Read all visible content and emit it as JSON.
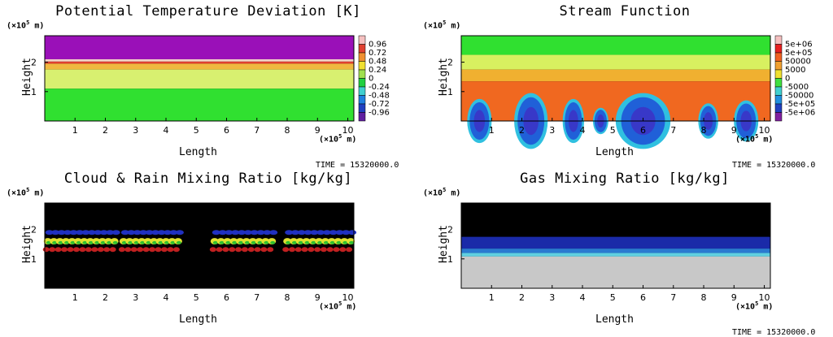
{
  "chart_data": [
    {
      "type": "heatmap",
      "title": "Potential Temperature Deviation [K]",
      "xlabel": "Length",
      "ylabel": "Height",
      "x_unit": "(×10⁵ m)",
      "y_unit": "(×10⁵ m)",
      "xlim": [
        0,
        10.2
      ],
      "ylim": [
        0,
        2.9
      ],
      "x_ticks": [
        "1",
        "2",
        "3",
        "4",
        "5",
        "6",
        "7",
        "8",
        "9",
        "10"
      ],
      "y_ticks": [
        "1",
        "2"
      ],
      "colorbar": [
        "0.96",
        "0.72",
        "0.48",
        "0.24",
        "0",
        "-0.24",
        "-0.48",
        "-0.72",
        "-0.96"
      ],
      "colorbar_colors": [
        "#f5c0c0",
        "#e04030",
        "#f09030",
        "#f0e030",
        "#a0e050",
        "#20d040",
        "#40d0d0",
        "#2080e0",
        "#2040c0",
        "#6020a0"
      ],
      "time": "TIME = 15320000.0",
      "layers": [
        {
          "y0": 2.1,
          "y1": 2.9,
          "color": "#9a10b8"
        },
        {
          "y0": 2.02,
          "y1": 2.1,
          "color": "#f4d0c8"
        },
        {
          "y0": 1.95,
          "y1": 2.02,
          "color": "#e04030"
        },
        {
          "y0": 1.75,
          "y1": 1.95,
          "color": "#f0b840"
        },
        {
          "y0": 1.1,
          "y1": 1.75,
          "color": "#d8f070"
        },
        {
          "y0": 0,
          "y1": 1.1,
          "color": "#30e030"
        }
      ]
    },
    {
      "type": "heatmap",
      "title": "Stream Function",
      "xlabel": "Length",
      "ylabel": "Height",
      "x_unit": "(×10⁵ m)",
      "y_unit": "(×10⁵ m)",
      "xlim": [
        0,
        10.2
      ],
      "ylim": [
        0,
        2.9
      ],
      "x_ticks": [
        "1",
        "2",
        "3",
        "4",
        "5",
        "6",
        "7",
        "8",
        "9",
        "10"
      ],
      "y_ticks": [
        "1",
        "2"
      ],
      "colorbar": [
        "5e+06",
        "5e+05",
        "50000",
        "5000",
        "0",
        "-5000",
        "-50000",
        "-5e+05",
        "-5e+06"
      ],
      "colorbar_colors": [
        "#f5c0c0",
        "#e82020",
        "#f06020",
        "#f0a030",
        "#f0e030",
        "#40e040",
        "#40d0d0",
        "#2090e0",
        "#2040c0",
        "#8020a0"
      ],
      "time": "TIME = 15320000.0",
      "layers": [
        {
          "y0": 2.25,
          "y1": 2.9,
          "color": "#30e030"
        },
        {
          "y0": 1.75,
          "y1": 2.25,
          "color": "#d8f060"
        },
        {
          "y0": 1.35,
          "y1": 1.75,
          "color": "#f0b030"
        },
        {
          "y0": 0,
          "y1": 1.35,
          "color": "#f06820"
        }
      ],
      "cells": [
        {
          "x": 0.6,
          "w": 0.7,
          "h": 0.75
        },
        {
          "x": 2.3,
          "w": 1.0,
          "h": 0.95
        },
        {
          "x": 3.7,
          "w": 0.6,
          "h": 0.75
        },
        {
          "x": 4.6,
          "w": 0.4,
          "h": 0.45
        },
        {
          "x": 6.0,
          "w": 1.7,
          "h": 0.95
        },
        {
          "x": 8.15,
          "w": 0.55,
          "h": 0.6
        },
        {
          "x": 9.4,
          "w": 0.7,
          "h": 0.7
        }
      ]
    },
    {
      "type": "heatmap",
      "title": "Cloud & Rain Mixing Ratio [kg/kg]",
      "xlabel": "Length",
      "ylabel": "Height",
      "x_unit": "(×10⁵ m)",
      "y_unit": "(×10⁵ m)",
      "xlim": [
        0,
        10.2
      ],
      "ylim": [
        0,
        2.9
      ],
      "x_ticks": [
        "1",
        "2",
        "3",
        "4",
        "5",
        "6",
        "7",
        "8",
        "9",
        "10"
      ],
      "y_ticks": [
        "1",
        "2"
      ],
      "time": "",
      "background": "#000000",
      "clouds": [
        {
          "x0": 0.0,
          "x1": 2.4
        },
        {
          "x0": 2.5,
          "x1": 4.5
        },
        {
          "x0": 5.5,
          "x1": 7.6
        },
        {
          "x0": 7.9,
          "x1": 10.2
        }
      ]
    },
    {
      "type": "heatmap",
      "title": "Gas Mixing Ratio [kg/kg]",
      "xlabel": "Length",
      "ylabel": "Height",
      "x_unit": "(×10⁵ m)",
      "y_unit": "(×10⁵ m)",
      "xlim": [
        0,
        10.2
      ],
      "ylim": [
        0,
        2.9
      ],
      "x_ticks": [
        "1",
        "2",
        "3",
        "4",
        "5",
        "6",
        "7",
        "8",
        "9",
        "10"
      ],
      "y_ticks": [
        "1",
        "2"
      ],
      "time": "TIME = 15320000.0",
      "layers": [
        {
          "y0": 1.75,
          "y1": 2.9,
          "color": "#000000"
        },
        {
          "y0": 1.35,
          "y1": 1.75,
          "color": "#1a2aa8"
        },
        {
          "y0": 1.2,
          "y1": 1.35,
          "color": "#2a7ad0"
        },
        {
          "y0": 1.08,
          "y1": 1.2,
          "color": "#60d0e0"
        },
        {
          "y0": 0,
          "y1": 1.08,
          "color": "#c8c8c8"
        }
      ]
    }
  ]
}
